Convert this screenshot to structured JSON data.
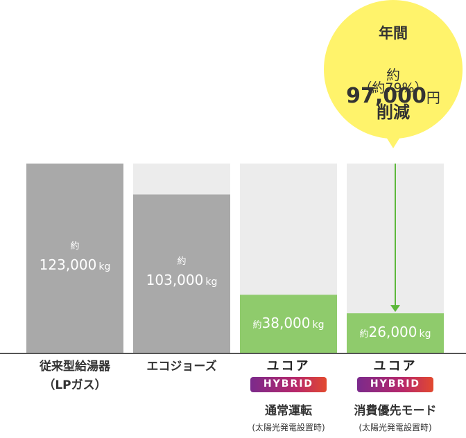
{
  "chart_data": {
    "type": "bar",
    "categories": [
      "従来型給湯器\n（LPガス）",
      "エコジョーズ",
      "通常運転",
      "消費優先モード"
    ],
    "values": [
      123000,
      103000,
      38000,
      26000
    ],
    "value_labels": [
      "123,000",
      "103,000",
      "38,000",
      "26,000"
    ],
    "value_prefix": "約",
    "unit": "kg",
    "colors": [
      "#a9a9a9",
      "#a9a9a9",
      "#8fcb6c",
      "#8fcb6c"
    ],
    "ylim": [
      0,
      123000
    ],
    "hybrid_categories": [
      2,
      3
    ],
    "brand": "ユコア",
    "badge": "HYBRID",
    "note": "(太陽光発電設置時)",
    "callout": {
      "line1": "年間",
      "prefix": "約",
      "amount": "97,000",
      "unit": "円",
      "percent": "（約79%）",
      "text": "削減"
    }
  }
}
